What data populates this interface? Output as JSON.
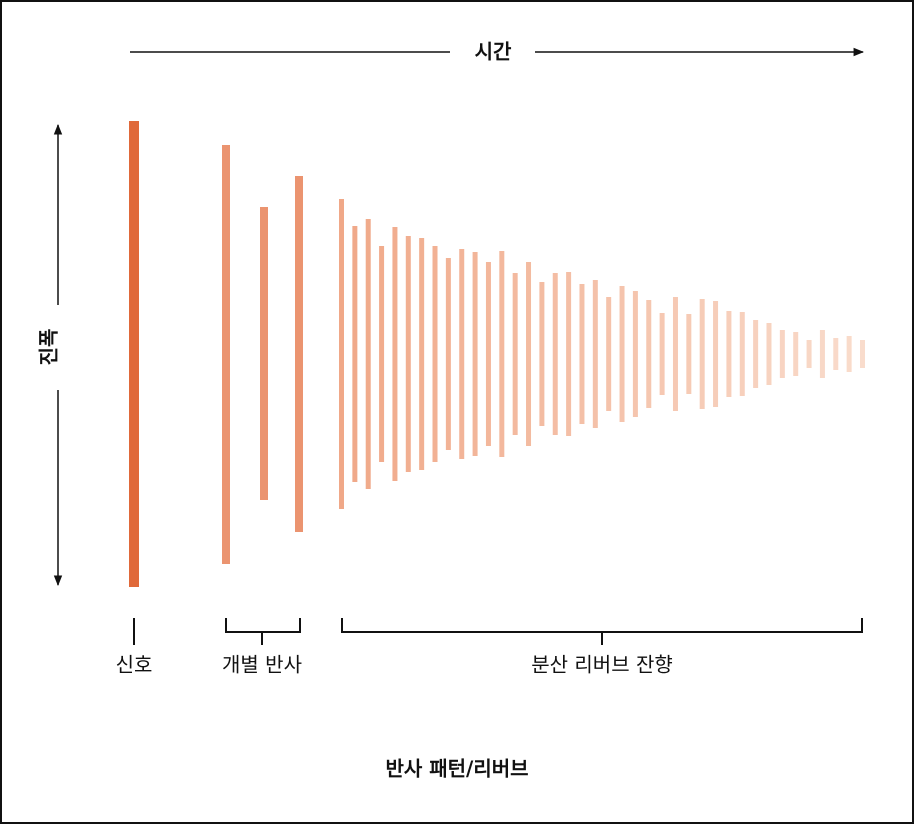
{
  "axes": {
    "x_label": "시간",
    "y_label": "진폭"
  },
  "segments": [
    "신호",
    "개별 반사",
    "분산 리버브 잔향"
  ],
  "caption": "반사 패턴/리버브"
}
